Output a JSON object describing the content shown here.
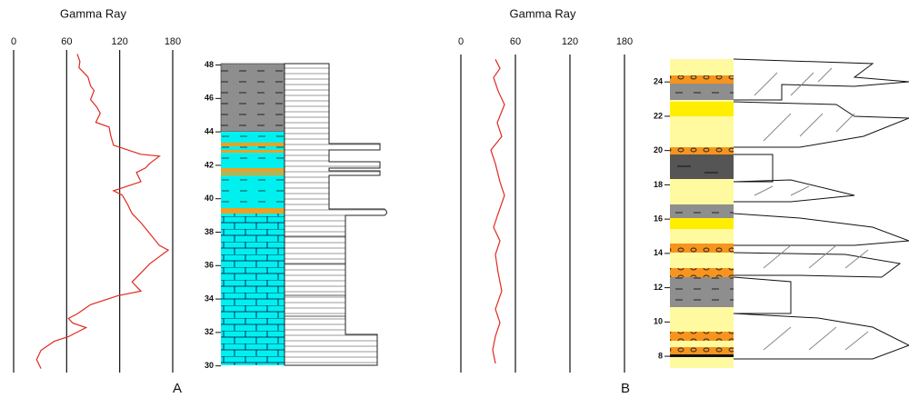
{
  "chart_data": [
    {
      "type": "line",
      "title": "Gamma Ray",
      "label": "A",
      "xlim": [
        0,
        180
      ],
      "xticks": [
        0,
        60,
        120,
        180
      ],
      "ylim": [
        29.6,
        48.9
      ],
      "yticks": [
        30,
        32,
        34,
        36,
        38,
        40,
        42,
        44,
        46,
        48
      ],
      "y": [
        48.66,
        48.22,
        47.84,
        47.29,
        46.75,
        46.47,
        45.93,
        45.49,
        45.11,
        44.57,
        44.29,
        43.75,
        43.2,
        42.66,
        42.55,
        42.11,
        41.84,
        41.57,
        41.02,
        40.48,
        40.21,
        39.66,
        39.11,
        38.57,
        37.2,
        36.93,
        36.11,
        35.56,
        35.02,
        34.47,
        34.2,
        33.66,
        33.11,
        32.84,
        32.56,
        32.29,
        31.75,
        31.47,
        30.93,
        30.38,
        29.84
      ],
      "series": [
        {
          "color": "#e02a1f",
          "values": [
            72,
            75,
            74,
            84,
            87,
            91,
            87,
            94,
            98,
            93,
            108,
            110,
            113,
            144,
            165,
            154,
            149,
            139,
            144,
            113,
            123,
            129,
            134,
            144,
            165,
            175,
            154,
            144,
            134,
            144,
            118,
            87,
            72,
            62,
            67,
            82,
            62,
            46,
            31,
            26,
            31
          ]
        }
      ]
    },
    {
      "type": "line",
      "title": "Gamma Ray",
      "label": "B",
      "xlim": [
        0,
        180
      ],
      "xticks": [
        0,
        60,
        120,
        180
      ],
      "ylim": [
        7.05,
        25.6
      ],
      "yticks": [
        8,
        10,
        12,
        14,
        16,
        18,
        20,
        22,
        24
      ],
      "y": [
        25.32,
        24.79,
        24.26,
        23.47,
        22.68,
        21.62,
        20.82,
        20.03,
        19.23,
        18.17,
        17.38,
        16.32,
        15.52,
        14.73,
        13.93,
        12.87,
        11.81,
        10.75,
        9.96,
        9.17,
        8.37,
        7.58
      ],
      "series": [
        {
          "color": "#e02a1f",
          "values": [
            38,
            43,
            36,
            41,
            48,
            40,
            45,
            33,
            38,
            43,
            48,
            41,
            36,
            43,
            38,
            41,
            45,
            38,
            43,
            38,
            35,
            38
          ]
        }
      ]
    }
  ]
}
